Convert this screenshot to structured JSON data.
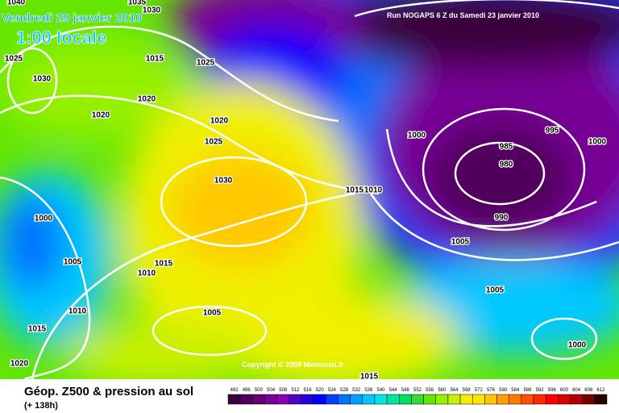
{
  "header": {
    "date": "Vendredi 29 janvier 2010",
    "time": "1:00 locale",
    "run": "Run NOGAPS 6 Z du Samedi 23 janvier 2010",
    "copyright": "Copyright © 2009 Meteociel.fr"
  },
  "footer": {
    "title": "Géop. Z500 & pression au sol",
    "lead": "(+ 138h)"
  },
  "legend": {
    "values": [
      492,
      496,
      500,
      504,
      508,
      512,
      516,
      520,
      524,
      528,
      532,
      536,
      540,
      544,
      548,
      552,
      556,
      560,
      564,
      568,
      572,
      576,
      580,
      584,
      588,
      592,
      596,
      600,
      604,
      608,
      612
    ],
    "colors": [
      "#3a003a",
      "#50005a",
      "#640078",
      "#780096",
      "#8c00b4",
      "#5000c8",
      "#2800dc",
      "#0000ff",
      "#0040ff",
      "#0070ff",
      "#00a0ff",
      "#00c8ff",
      "#00e6e6",
      "#00e6a0",
      "#00dc64",
      "#32dc32",
      "#64e600",
      "#96f000",
      "#c8f000",
      "#f0f000",
      "#ffe600",
      "#ffc800",
      "#ffa000",
      "#ff7800",
      "#ff5000",
      "#ff2800",
      "#ff0000",
      "#dc0000",
      "#b40000",
      "#780000",
      "#280000"
    ]
  },
  "isobar_labels": [
    1040,
    1025,
    1030,
    1015,
    1025,
    1035,
    1030,
    1020,
    1020,
    1020,
    1025,
    1030,
    1015,
    1010,
    1000,
    985,
    980,
    995,
    1000,
    990,
    1005,
    1000,
    1005,
    1015,
    1010,
    1010,
    1005,
    1015,
    1020,
    1005,
    1000,
    1015
  ]
}
